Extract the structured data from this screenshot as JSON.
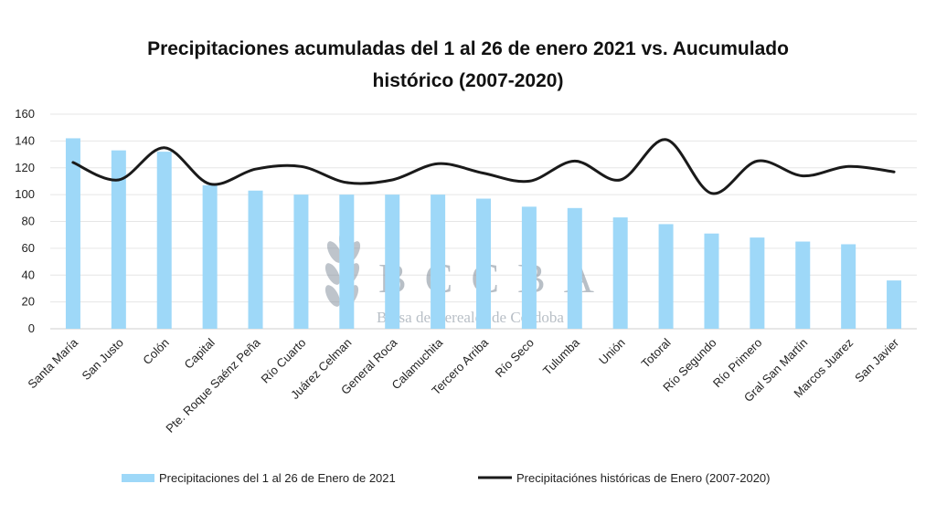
{
  "chart_data": {
    "type": "bar",
    "title_lines": [
      "Precipitaciones acumuladas del 1 al 26 de enero 2021 vs. Aucumulado",
      "histórico (2007-2020)"
    ],
    "categories": [
      "Santa María",
      "San Justo",
      "Colón",
      "Capital",
      "Pte. Roque Saénz Peña",
      "Río Cuarto",
      "Juárez Celman",
      "General Roca",
      "Calamuchita",
      "Tercero Arriba",
      "Río Seco",
      "Tulumba",
      "Unión",
      "Totoral",
      "Río Segundo",
      "Río Primero",
      "Gral San Martín",
      "Marcos Juarez",
      "San Javier"
    ],
    "series": [
      {
        "name": "Precipitaciones del 1 al 26 de Enero de 2021",
        "type": "bar",
        "color": "#9ed8f8",
        "values": [
          142,
          133,
          132,
          107,
          103,
          100,
          100,
          100,
          100,
          97,
          91,
          90,
          83,
          78,
          71,
          68,
          65,
          63,
          36
        ]
      },
      {
        "name": "Precipitaciónes históricas de Enero (2007-2020)",
        "type": "line",
        "color": "#1a1a1a",
        "values": [
          124,
          111,
          135,
          108,
          119,
          121,
          109,
          111,
          123,
          116,
          110,
          125,
          111,
          141,
          101,
          125,
          114,
          121,
          117
        ]
      }
    ],
    "ylim": [
      0,
      160
    ],
    "yticks": [
      0,
      20,
      40,
      60,
      80,
      100,
      120,
      140,
      160
    ],
    "grid": true,
    "legend_position": "bottom"
  },
  "watermark": {
    "letters": "BCCBA",
    "subtitle": "Bolsa de Cereales de Córdoba",
    "color": "#7f8b99"
  }
}
